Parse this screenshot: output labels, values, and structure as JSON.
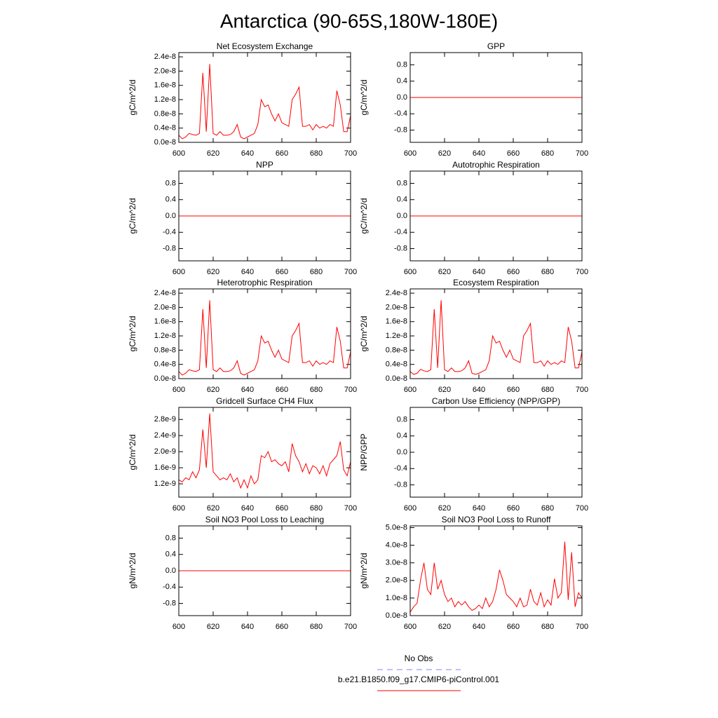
{
  "title": "Antarctica (90-65S,180W-180E)",
  "legend": [
    {
      "name": "No Obs",
      "color": "#8080ff",
      "dash": true
    },
    {
      "name": "b.e21.B1850.f09_g17.CMIP6-piControl.001",
      "color": "#ff0000",
      "dash": false
    }
  ],
  "chart_data": [
    {
      "type": "line",
      "title": "Net Ecosystem Exchange",
      "ylabel": "gC/m^2/d",
      "x": [
        600,
        602,
        604,
        606,
        608,
        610,
        612,
        614,
        616,
        618,
        620,
        622,
        624,
        626,
        628,
        630,
        632,
        634,
        636,
        638,
        640,
        642,
        644,
        646,
        648,
        650,
        652,
        654,
        656,
        658,
        660,
        662,
        664,
        666,
        668,
        670,
        672,
        674,
        676,
        678,
        680,
        682,
        684,
        686,
        688,
        690,
        692,
        694,
        696,
        698,
        700
      ],
      "series": [
        {
          "color": "#ff0000",
          "values": [
            2e-09,
            1e-09,
            1.5e-09,
            2.5e-09,
            2.2e-09,
            2e-09,
            2.5e-09,
            1.95e-08,
            3e-09,
            2.2e-08,
            2.5e-09,
            2e-09,
            3e-09,
            2e-09,
            2e-09,
            2.2e-09,
            3e-09,
            5e-09,
            1.5e-09,
            1e-09,
            1.5e-09,
            2e-09,
            2.5e-09,
            5e-09,
            1.2e-08,
            1e-08,
            1.05e-08,
            8e-09,
            6e-09,
            8e-09,
            5.5e-09,
            5e-09,
            4.5e-09,
            1.2e-08,
            1.35e-08,
            1.55e-08,
            4.5e-09,
            4.5e-09,
            5e-09,
            3.5e-09,
            5e-09,
            4e-09,
            4.5e-09,
            4e-09,
            5e-09,
            4.5e-09,
            1.45e-08,
            1.05e-08,
            3e-09,
            3e-09,
            7.5e-09
          ]
        }
      ],
      "xlim": [
        600,
        700
      ],
      "xticks": [
        600,
        620,
        640,
        660,
        680,
        700
      ],
      "ylim": [
        0,
        2.52e-08
      ],
      "yticks": [
        {
          "value": 0,
          "label": "0.0e-8"
        },
        {
          "value": 4e-09,
          "label": "0.4e-8"
        },
        {
          "value": 8e-09,
          "label": "0.8e-8"
        },
        {
          "value": 1.2e-08,
          "label": "1.2e-8"
        },
        {
          "value": 1.6e-08,
          "label": "1.6e-8"
        },
        {
          "value": 2e-08,
          "label": "2.0e-8"
        },
        {
          "value": 2.4e-08,
          "label": "2.4e-8"
        }
      ]
    },
    {
      "type": "line",
      "title": "GPP",
      "ylabel": "gC/m^2/d",
      "x": [
        600,
        700
      ],
      "series": [
        {
          "color": "#ff0000",
          "values": [
            0,
            0
          ]
        }
      ],
      "xlim": [
        600,
        700
      ],
      "xticks": [
        600,
        620,
        640,
        660,
        680,
        700
      ],
      "ylim": [
        -1.1,
        1.1
      ],
      "yticks": [
        -0.8,
        -0.4,
        {
          "value": 0,
          "label": "0.0"
        },
        0.4,
        0.8
      ]
    },
    {
      "type": "line",
      "title": "NPP",
      "ylabel": "gC/m^2/d",
      "x": [
        600,
        700
      ],
      "series": [
        {
          "color": "#ff0000",
          "values": [
            0,
            0
          ]
        }
      ],
      "xlim": [
        600,
        700
      ],
      "xticks": [
        600,
        620,
        640,
        660,
        680,
        700
      ],
      "ylim": [
        -1.1,
        1.1
      ],
      "yticks": [
        -0.8,
        -0.4,
        {
          "value": 0,
          "label": "0.0"
        },
        0.4,
        0.8
      ]
    },
    {
      "type": "line",
      "title": "Autotrophic Respiration",
      "ylabel": "gC/m^2/d",
      "x": [
        600,
        700
      ],
      "series": [
        {
          "color": "#ff0000",
          "values": [
            0,
            0
          ]
        }
      ],
      "xlim": [
        600,
        700
      ],
      "xticks": [
        600,
        620,
        640,
        660,
        680,
        700
      ],
      "ylim": [
        -1.1,
        1.1
      ],
      "yticks": [
        -0.8,
        -0.4,
        {
          "value": 0,
          "label": "0.0"
        },
        0.4,
        0.8
      ]
    },
    {
      "type": "line",
      "title": "Heterotrophic Respiration",
      "ylabel": "gC/m^2/d",
      "x": [
        600,
        602,
        604,
        606,
        608,
        610,
        612,
        614,
        616,
        618,
        620,
        622,
        624,
        626,
        628,
        630,
        632,
        634,
        636,
        638,
        640,
        642,
        644,
        646,
        648,
        650,
        652,
        654,
        656,
        658,
        660,
        662,
        664,
        666,
        668,
        670,
        672,
        674,
        676,
        678,
        680,
        682,
        684,
        686,
        688,
        690,
        692,
        694,
        696,
        698,
        700
      ],
      "series": [
        {
          "color": "#ff0000",
          "values": [
            2e-09,
            1e-09,
            1.5e-09,
            2.5e-09,
            2.2e-09,
            2e-09,
            2.5e-09,
            1.95e-08,
            3e-09,
            2.2e-08,
            2.5e-09,
            2e-09,
            3e-09,
            2e-09,
            2e-09,
            2.2e-09,
            3e-09,
            5e-09,
            1.5e-09,
            1e-09,
            1.5e-09,
            2e-09,
            2.5e-09,
            5e-09,
            1.2e-08,
            1e-08,
            1.05e-08,
            8e-09,
            6e-09,
            8e-09,
            5.5e-09,
            5e-09,
            4.5e-09,
            1.2e-08,
            1.35e-08,
            1.55e-08,
            4.5e-09,
            4.5e-09,
            5e-09,
            3.5e-09,
            5e-09,
            4e-09,
            4.5e-09,
            4e-09,
            5e-09,
            4.5e-09,
            1.45e-08,
            1.05e-08,
            3e-09,
            3e-09,
            7.5e-09
          ]
        }
      ],
      "xlim": [
        600,
        700
      ],
      "xticks": [
        600,
        620,
        640,
        660,
        680,
        700
      ],
      "ylim": [
        0,
        2.52e-08
      ],
      "yticks": [
        {
          "value": 0,
          "label": "0.0e-8"
        },
        {
          "value": 4e-09,
          "label": "0.4e-8"
        },
        {
          "value": 8e-09,
          "label": "0.8e-8"
        },
        {
          "value": 1.2e-08,
          "label": "1.2e-8"
        },
        {
          "value": 1.6e-08,
          "label": "1.6e-8"
        },
        {
          "value": 2e-08,
          "label": "2.0e-8"
        },
        {
          "value": 2.4e-08,
          "label": "2.4e-8"
        }
      ]
    },
    {
      "type": "line",
      "title": "Ecosystem Respiration",
      "ylabel": "gC/m^2/d",
      "x": [
        600,
        602,
        604,
        606,
        608,
        610,
        612,
        614,
        616,
        618,
        620,
        622,
        624,
        626,
        628,
        630,
        632,
        634,
        636,
        638,
        640,
        642,
        644,
        646,
        648,
        650,
        652,
        654,
        656,
        658,
        660,
        662,
        664,
        666,
        668,
        670,
        672,
        674,
        676,
        678,
        680,
        682,
        684,
        686,
        688,
        690,
        692,
        694,
        696,
        698,
        700
      ],
      "series": [
        {
          "color": "#ff0000",
          "values": [
            2e-09,
            1.2e-09,
            1.5e-09,
            2.6e-09,
            2.2e-09,
            2e-09,
            2.5e-09,
            1.95e-08,
            3e-09,
            2.2e-08,
            2.5e-09,
            2e-09,
            3e-09,
            2e-09,
            2e-09,
            2.2e-09,
            3e-09,
            5e-09,
            1.5e-09,
            1.2e-09,
            1.5e-09,
            2e-09,
            2.5e-09,
            5e-09,
            1.2e-08,
            1e-08,
            1.05e-08,
            8e-09,
            6e-09,
            8e-09,
            5.5e-09,
            5e-09,
            4.5e-09,
            1.2e-08,
            1.35e-08,
            1.55e-08,
            4.5e-09,
            4.5e-09,
            5e-09,
            3.5e-09,
            5e-09,
            4e-09,
            4.5e-09,
            4e-09,
            5e-09,
            4.5e-09,
            1.45e-08,
            1.05e-08,
            3e-09,
            3e-09,
            7.5e-09
          ]
        }
      ],
      "xlim": [
        600,
        700
      ],
      "xticks": [
        600,
        620,
        640,
        660,
        680,
        700
      ],
      "ylim": [
        0,
        2.52e-08
      ],
      "yticks": [
        {
          "value": 0,
          "label": "0.0e-8"
        },
        {
          "value": 4e-09,
          "label": "0.4e-8"
        },
        {
          "value": 8e-09,
          "label": "0.8e-8"
        },
        {
          "value": 1.2e-08,
          "label": "1.2e-8"
        },
        {
          "value": 1.6e-08,
          "label": "1.6e-8"
        },
        {
          "value": 2e-08,
          "label": "2.0e-8"
        },
        {
          "value": 2.4e-08,
          "label": "2.4e-8"
        }
      ]
    },
    {
      "type": "line",
      "title": "Gridcell Surface CH4 Flux",
      "ylabel": "gC/m^2/d",
      "x": [
        600,
        602,
        604,
        606,
        608,
        610,
        612,
        614,
        616,
        618,
        620,
        622,
        624,
        626,
        628,
        630,
        632,
        634,
        636,
        638,
        640,
        642,
        644,
        646,
        648,
        650,
        652,
        654,
        656,
        658,
        660,
        662,
        664,
        666,
        668,
        670,
        672,
        674,
        676,
        678,
        680,
        682,
        684,
        686,
        688,
        690,
        692,
        694,
        696,
        698,
        700
      ],
      "series": [
        {
          "color": "#ff0000",
          "values": [
            1.3e-09,
            1.25e-09,
            1.35e-09,
            1.3e-09,
            1.5e-09,
            1.35e-09,
            1.55e-09,
            2.55e-09,
            1.6e-09,
            2.95e-09,
            1.5e-09,
            1.4e-09,
            1.3e-09,
            1.35e-09,
            1.3e-09,
            1.45e-09,
            1.25e-09,
            1.35e-09,
            1.1e-09,
            1.3e-09,
            1.1e-09,
            1.4e-09,
            1.2e-09,
            1.3e-09,
            1.9e-09,
            1.85e-09,
            2e-09,
            1.75e-09,
            1.8e-09,
            1.7e-09,
            1.65e-09,
            1.75e-09,
            1.5e-09,
            2.2e-09,
            1.9e-09,
            1.75e-09,
            1.5e-09,
            1.7e-09,
            1.45e-09,
            1.65e-09,
            1.6e-09,
            1.45e-09,
            1.65e-09,
            1.4e-09,
            1.7e-09,
            1.8e-09,
            1.9e-09,
            2.25e-09,
            1.55e-09,
            1.4e-09,
            1.75e-09
          ]
        }
      ],
      "xlim": [
        600,
        700
      ],
      "xticks": [
        600,
        620,
        640,
        660,
        680,
        700
      ],
      "ylim": [
        8.7e-10,
        3.1e-09
      ],
      "yticks": [
        {
          "value": 1.2e-09,
          "label": "1.2e-9"
        },
        {
          "value": 1.6e-09,
          "label": "1.6e-9"
        },
        {
          "value": 2e-09,
          "label": "2.0e-9"
        },
        {
          "value": 2.4e-09,
          "label": "2.4e-9"
        },
        {
          "value": 2.8e-09,
          "label": "2.8e-9"
        }
      ]
    },
    {
      "type": "line",
      "title": "Carbon Use Efficiency (NPP/GPP)",
      "ylabel": "NPP/GPP",
      "x": [],
      "series": [],
      "xlim": [
        600,
        700
      ],
      "xticks": [
        600,
        620,
        640,
        660,
        680,
        700
      ],
      "ylim": [
        -1.1,
        1.1
      ],
      "yticks": [
        -0.8,
        -0.4,
        {
          "value": 0,
          "label": "0.0"
        },
        0.4,
        0.8
      ]
    },
    {
      "type": "line",
      "title": "Soil NO3 Pool Loss to Leaching",
      "ylabel": "gN/m^2/d",
      "x": [
        600,
        700
      ],
      "series": [
        {
          "color": "#ff0000",
          "values": [
            0,
            0
          ]
        }
      ],
      "xlim": [
        600,
        700
      ],
      "xticks": [
        600,
        620,
        640,
        660,
        680,
        700
      ],
      "ylim": [
        -1.1,
        1.1
      ],
      "yticks": [
        -0.8,
        -0.4,
        {
          "value": 0,
          "label": "0.0"
        },
        0.4,
        0.8
      ]
    },
    {
      "type": "line",
      "title": "Soil NO3 Pool Loss to Runoff",
      "ylabel": "gN/m^2/d",
      "x": [
        600,
        602,
        604,
        606,
        608,
        610,
        612,
        614,
        616,
        618,
        620,
        622,
        624,
        626,
        628,
        630,
        632,
        634,
        636,
        638,
        640,
        642,
        644,
        646,
        648,
        650,
        652,
        654,
        656,
        658,
        660,
        662,
        664,
        666,
        668,
        670,
        672,
        674,
        676,
        678,
        680,
        682,
        684,
        686,
        688,
        690,
        692,
        694,
        696,
        698,
        700
      ],
      "series": [
        {
          "color": "#ff0000",
          "values": [
            2e-09,
            5e-09,
            7e-09,
            2e-08,
            3e-08,
            1.5e-08,
            1.2e-08,
            3e-08,
            1.5e-08,
            2e-08,
            1.2e-08,
            8e-09,
            1e-08,
            5e-09,
            8e-09,
            6e-09,
            8e-09,
            5e-09,
            3e-09,
            4e-09,
            6e-09,
            4e-09,
            1e-08,
            5e-09,
            8e-09,
            1.5e-08,
            2.6e-08,
            2e-08,
            1.2e-08,
            1e-08,
            8e-09,
            5e-09,
            1e-08,
            5e-09,
            6e-09,
            1.5e-08,
            8e-09,
            6e-09,
            1.3e-08,
            5e-09,
            9e-09,
            6e-09,
            2.1e-08,
            1e-08,
            1.3e-08,
            4.2e-08,
            9e-09,
            3.6e-08,
            5e-09,
            1.3e-08,
            1e-08
          ]
        }
      ],
      "xlim": [
        600,
        700
      ],
      "xticks": [
        600,
        620,
        640,
        660,
        680,
        700
      ],
      "ylim": [
        0,
        5.1e-08
      ],
      "yticks": [
        {
          "value": 0,
          "label": "0.0e-8"
        },
        {
          "value": 1e-08,
          "label": "1.0e-8"
        },
        {
          "value": 2e-08,
          "label": "2.0e-8"
        },
        {
          "value": 3e-08,
          "label": "3.0e-8"
        },
        {
          "value": 4e-08,
          "label": "4.0e-8"
        },
        {
          "value": 5e-08,
          "label": "5.0e-8"
        }
      ]
    }
  ]
}
